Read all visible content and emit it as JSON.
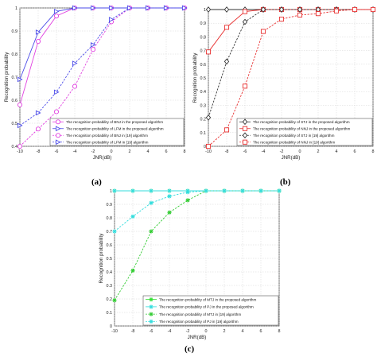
{
  "captions": {
    "a": "(a)",
    "b": "(b)",
    "c": "(c)"
  },
  "chart_data": [
    {
      "id": "a",
      "type": "line",
      "xlabel": "JNR(dB)",
      "ylabel": "Recognition probability",
      "xlim": [
        -10,
        8
      ],
      "ylim": [
        0.4,
        1.0
      ],
      "xticks": [
        -10,
        -8,
        -6,
        -4,
        -2,
        0,
        2,
        4,
        6,
        8
      ],
      "yticks": [
        0.4,
        0.5,
        0.6,
        0.7,
        0.8,
        0.9,
        1
      ],
      "grid": true,
      "legend_position": "bottom-right",
      "x": [
        -10,
        -8,
        -6,
        -4,
        -2,
        0,
        2,
        4,
        6,
        8
      ],
      "series": [
        {
          "name": "The recognition probability of BNJ in the proposed algorithm",
          "values": [
            0.58,
            0.855,
            0.965,
            1,
            1,
            1,
            1,
            1,
            1,
            1
          ],
          "color": "#e040e0",
          "dashed": false,
          "marker": "circle"
        },
        {
          "name": "The recognition probability of LFM in the proposed algorithm",
          "values": [
            0.69,
            0.895,
            0.985,
            1,
            1,
            1,
            1,
            1,
            1,
            1
          ],
          "color": "#4a4ae8",
          "dashed": false,
          "marker": "triangle-right"
        },
        {
          "name": "The recognition probability of BNJ in [19] algorithm",
          "values": [
            0.4,
            0.475,
            0.55,
            0.66,
            0.82,
            0.94,
            1,
            1,
            1,
            1
          ],
          "color": "#e040e0",
          "dashed": true,
          "marker": "circle"
        },
        {
          "name": "The recognition probability of LFM in [19] algorithm",
          "values": [
            0.49,
            0.545,
            0.635,
            0.76,
            0.84,
            0.95,
            1,
            1,
            1,
            1
          ],
          "color": "#4a4ae8",
          "dashed": true,
          "marker": "triangle-right"
        }
      ]
    },
    {
      "id": "b",
      "type": "line",
      "xlabel": "JNR(dB)",
      "ylabel": "Recognition probability",
      "xlim": [
        -10,
        8
      ],
      "ylim": [
        0,
        1
      ],
      "xticks": [
        -10,
        -8,
        -6,
        -4,
        -2,
        0,
        2,
        4,
        6,
        8
      ],
      "yticks": [
        0,
        0.1,
        0.2,
        0.3,
        0.4,
        0.5,
        0.6,
        0.7,
        0.8,
        0.9,
        1
      ],
      "grid": true,
      "legend_position": "bottom-right",
      "x": [
        -10,
        -8,
        -6,
        -4,
        -2,
        0,
        2,
        4,
        6,
        8
      ],
      "series": [
        {
          "name": "The recognition probability of STJ in the proposed algorithm",
          "values": [
            1,
            1,
            1,
            1,
            1,
            1,
            1,
            1,
            1,
            1
          ],
          "color": "#333333",
          "dashed": false,
          "marker": "diamond"
        },
        {
          "name": "The recognition probability of NNJ in the proposed algorithm",
          "values": [
            0.69,
            0.87,
            0.985,
            1,
            1,
            1,
            1,
            1,
            1,
            1
          ],
          "color": "#e83030",
          "dashed": false,
          "marker": "square"
        },
        {
          "name": "The recognition probability of STJ in [19] algorithm",
          "values": [
            0.21,
            0.62,
            0.91,
            1,
            1,
            1,
            1,
            1,
            1,
            1
          ],
          "color": "#333333",
          "dashed": true,
          "marker": "diamond"
        },
        {
          "name": "The recognition probability of NNJ in [19] algorithm",
          "values": [
            0,
            0.12,
            0.44,
            0.84,
            0.93,
            0.96,
            0.97,
            0.99,
            1,
            1
          ],
          "color": "#e83030",
          "dashed": true,
          "marker": "square"
        }
      ]
    },
    {
      "id": "c",
      "type": "line",
      "xlabel": "JNR(dB)",
      "ylabel": "Recognition probability",
      "xlim": [
        -10,
        8
      ],
      "ylim": [
        0,
        1
      ],
      "xticks": [
        -10,
        -8,
        -6,
        -4,
        -2,
        0,
        2,
        4,
        6,
        8
      ],
      "yticks": [
        0,
        0.1,
        0.2,
        0.3,
        0.4,
        0.5,
        0.6,
        0.7,
        0.8,
        0.9,
        1
      ],
      "grid": true,
      "legend_position": "bottom-right",
      "x": [
        -10,
        -8,
        -6,
        -4,
        -2,
        0,
        2,
        4,
        6,
        8
      ],
      "series": [
        {
          "name": "The recognition probability of MTJ in the proposed algorithm",
          "values": [
            1,
            1,
            1,
            1,
            1,
            1,
            1,
            1,
            1,
            1
          ],
          "color": "#33dd33",
          "dashed": false,
          "marker": "star"
        },
        {
          "name": "The recognition probability of PJ in the proposed algorithm",
          "values": [
            1,
            1,
            1,
            1,
            1,
            1,
            1,
            1,
            1,
            1
          ],
          "color": "#33dddd",
          "dashed": false,
          "marker": "star"
        },
        {
          "name": "The recognition probability of MTJ in [19] algorithm",
          "values": [
            0.19,
            0.41,
            0.7,
            0.84,
            0.93,
            1,
            1,
            1,
            1,
            1
          ],
          "color": "#33cc33",
          "dashed": true,
          "marker": "star"
        },
        {
          "name": "The recognition probability of PJ in [19] algorithm",
          "values": [
            0.7,
            0.81,
            0.91,
            0.96,
            0.99,
            1,
            1,
            1,
            1,
            1
          ],
          "color": "#33dddd",
          "dashed": true,
          "marker": "star"
        }
      ]
    }
  ]
}
